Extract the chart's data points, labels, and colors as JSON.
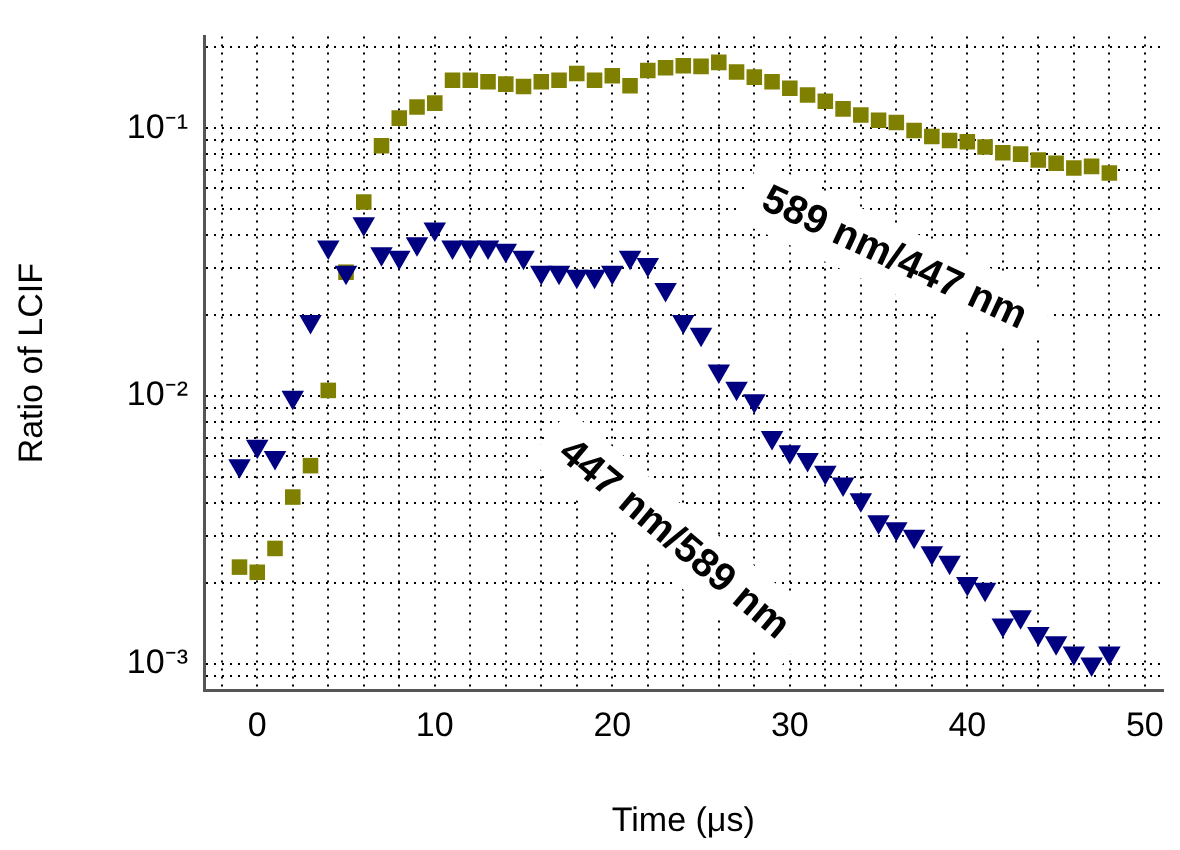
{
  "chart_data": {
    "type": "scatter",
    "xlabel": "Time (μs)",
    "ylabel": "Ratio of LCIF",
    "log": "y",
    "grid": true,
    "legend": false,
    "xlim": [
      -3,
      51
    ],
    "xticks": [
      {
        "value": -2,
        "label": null
      },
      0,
      {
        "value": 2,
        "label": null
      },
      {
        "value": 4,
        "label": null
      },
      {
        "value": 6,
        "label": null
      },
      {
        "value": 8,
        "label": null
      },
      10,
      {
        "value": 12,
        "label": null
      },
      {
        "value": 14,
        "label": null
      },
      {
        "value": 16,
        "label": null
      },
      {
        "value": 18,
        "label": null
      },
      20,
      {
        "value": 22,
        "label": null
      },
      {
        "value": 24,
        "label": null
      },
      {
        "value": 26,
        "label": null
      },
      {
        "value": 28,
        "label": null
      },
      30,
      {
        "value": 32,
        "label": null
      },
      {
        "value": 34,
        "label": null
      },
      {
        "value": 36,
        "label": null
      },
      {
        "value": 38,
        "label": null
      },
      40,
      {
        "value": 42,
        "label": null
      },
      {
        "value": 44,
        "label": null
      },
      {
        "value": 46,
        "label": null
      },
      {
        "value": 48,
        "label": null
      },
      50
    ],
    "ylim": [
      0.0008,
      0.22
    ],
    "yticks": [
      {
        "value": 0.0009,
        "label": null
      },
      {
        "value": 0.001,
        "label": "10⁻³"
      },
      {
        "value": 0.002,
        "label": null
      },
      {
        "value": 0.003,
        "label": null
      },
      {
        "value": 0.004,
        "label": null
      },
      {
        "value": 0.005,
        "label": null
      },
      {
        "value": 0.006,
        "label": null
      },
      {
        "value": 0.007,
        "label": null
      },
      {
        "value": 0.008,
        "label": null
      },
      {
        "value": 0.009,
        "label": null
      },
      {
        "value": 0.01,
        "label": "10⁻²"
      },
      {
        "value": 0.02,
        "label": null
      },
      {
        "value": 0.03,
        "label": null
      },
      {
        "value": 0.04,
        "label": null
      },
      {
        "value": 0.05,
        "label": null
      },
      {
        "value": 0.06,
        "label": null
      },
      {
        "value": 0.07,
        "label": null
      },
      {
        "value": 0.08,
        "label": null
      },
      {
        "value": 0.09,
        "label": null
      },
      {
        "value": 0.1,
        "label": "10⁻¹"
      },
      {
        "value": 0.2,
        "label": null
      }
    ],
    "x": [
      -1,
      0,
      1,
      2,
      3,
      4,
      5,
      6,
      7,
      8,
      9,
      10,
      11,
      12,
      13,
      14,
      15,
      16,
      17,
      18,
      19,
      20,
      21,
      22,
      23,
      24,
      25,
      26,
      27,
      28,
      29,
      30,
      31,
      32,
      33,
      34,
      35,
      36,
      37,
      38,
      39,
      40,
      41,
      42,
      43,
      44,
      45,
      46,
      47,
      48
    ],
    "series": [
      {
        "name": "589 nm/447 nm",
        "color": "#808000",
        "marker": "square",
        "values": [
          0.0023,
          0.0022,
          0.0027,
          0.0042,
          0.0055,
          0.0105,
          0.029,
          0.053,
          0.086,
          0.109,
          0.12,
          0.124,
          0.151,
          0.151,
          0.149,
          0.146,
          0.143,
          0.149,
          0.151,
          0.16,
          0.151,
          0.157,
          0.144,
          0.164,
          0.168,
          0.171,
          0.17,
          0.176,
          0.162,
          0.155,
          0.149,
          0.141,
          0.133,
          0.126,
          0.118,
          0.112,
          0.107,
          0.105,
          0.098,
          0.093,
          0.09,
          0.089,
          0.085,
          0.081,
          0.08,
          0.076,
          0.074,
          0.071,
          0.072,
          0.068
        ]
      },
      {
        "name": "447 nm/589 nm",
        "color": "#000080",
        "marker": "triangle",
        "values": [
          0.0055,
          0.0065,
          0.0059,
          0.0099,
          0.019,
          0.036,
          0.029,
          0.044,
          0.034,
          0.033,
          0.037,
          0.042,
          0.036,
          0.036,
          0.036,
          0.035,
          0.033,
          0.029,
          0.029,
          0.028,
          0.028,
          0.029,
          0.033,
          0.031,
          0.025,
          0.019,
          0.017,
          0.0124,
          0.0107,
          0.0096,
          0.007,
          0.0062,
          0.0058,
          0.0052,
          0.0047,
          0.0041,
          0.0034,
          0.0032,
          0.003,
          0.0026,
          0.0024,
          0.002,
          0.0019,
          0.0014,
          0.0015,
          0.0013,
          0.0012,
          0.0011,
          0.001,
          0.0011
        ]
      }
    ]
  }
}
